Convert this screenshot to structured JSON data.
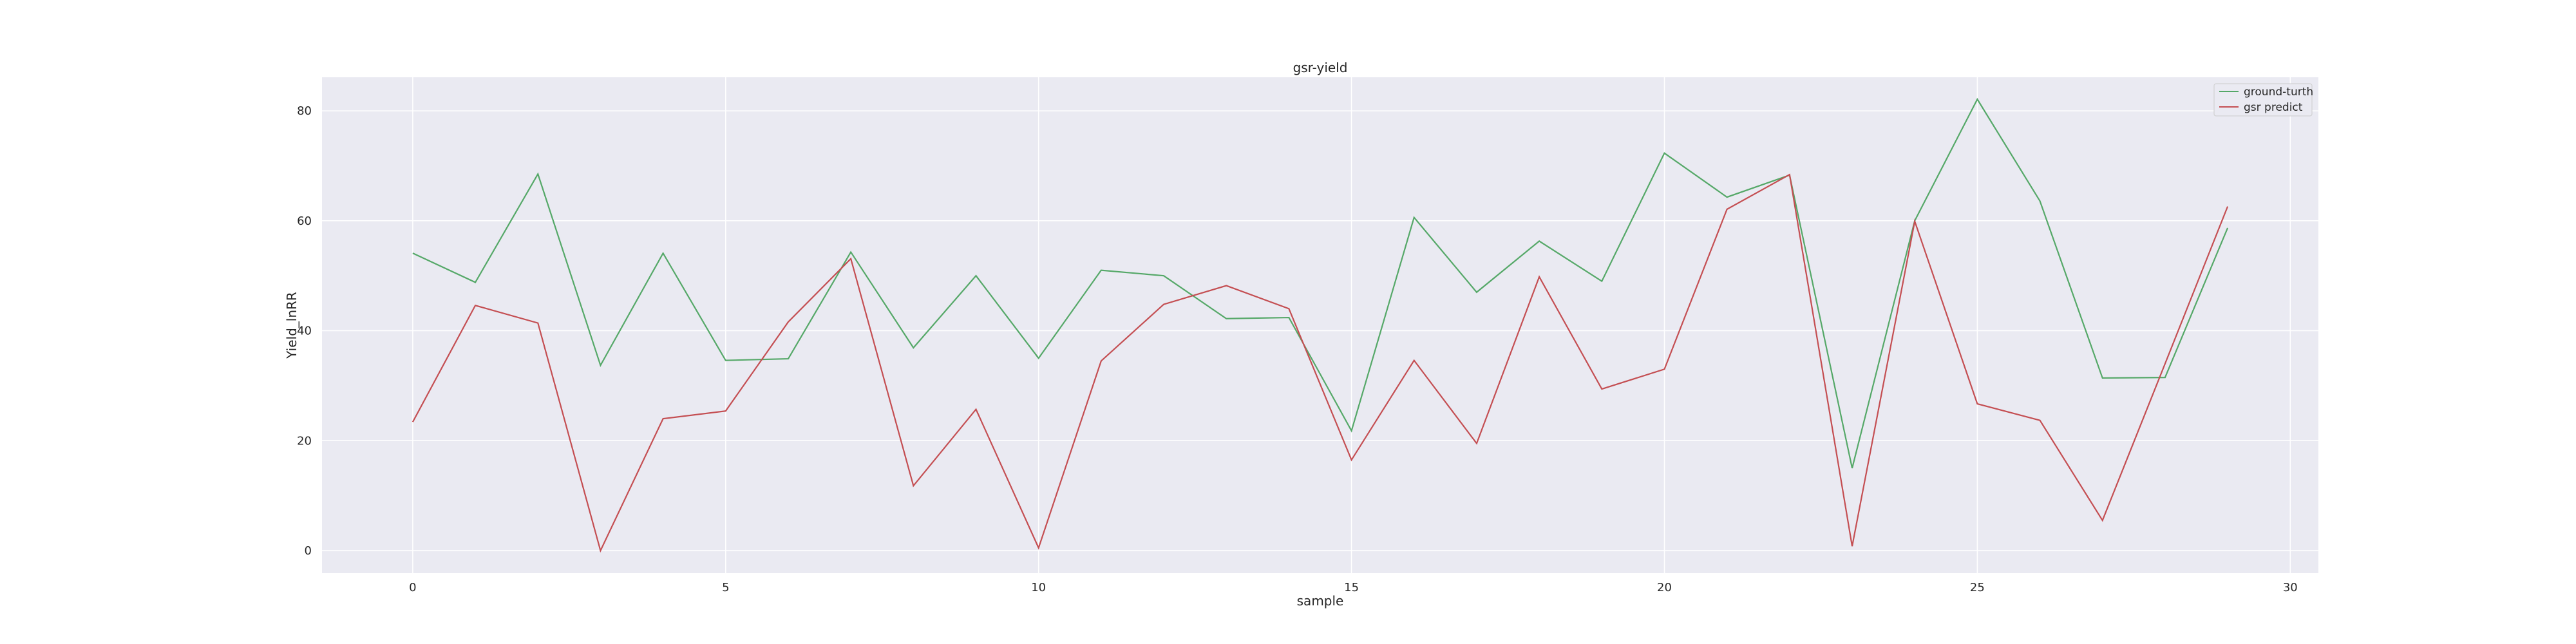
{
  "chart_data": {
    "type": "line",
    "title": "gsr-yield",
    "xlabel": "sample",
    "ylabel": "Yield_lnRR",
    "xlim": [
      -1.45,
      30.45
    ],
    "ylim": [
      -4.1,
      86.1
    ],
    "xticks": [
      0,
      5,
      10,
      15,
      20,
      25,
      30
    ],
    "yticks": [
      0,
      20,
      40,
      60,
      80
    ],
    "grid": true,
    "legend_position": "top-right",
    "x": [
      0,
      1,
      2,
      3,
      4,
      5,
      6,
      7,
      8,
      9,
      10,
      11,
      12,
      13,
      14,
      15,
      16,
      17,
      18,
      19,
      20,
      21,
      22,
      23,
      24,
      25,
      26,
      27,
      28,
      29
    ],
    "series": [
      {
        "name": "ground-turth",
        "color": "#55a868",
        "values": [
          54.1,
          48.8,
          68.5,
          33.7,
          54.1,
          34.6,
          34.9,
          54.3,
          36.9,
          50.0,
          35.0,
          51.0,
          50.0,
          42.2,
          42.4,
          21.8,
          60.6,
          47.0,
          56.3,
          49.0,
          72.3,
          64.3,
          68.3,
          15.0,
          60.0,
          82.1,
          63.6,
          31.4,
          31.5,
          58.7
        ]
      },
      {
        "name": "gsr predict",
        "color": "#c44e52",
        "values": [
          23.4,
          44.6,
          41.4,
          0.0,
          24.0,
          25.4,
          41.6,
          53.1,
          11.8,
          25.7,
          0.5,
          34.5,
          44.8,
          48.2,
          44.0,
          16.5,
          34.6,
          19.5,
          49.8,
          29.4,
          33.0,
          62.1,
          68.4,
          0.8,
          59.9,
          26.7,
          23.7,
          5.5,
          34.0,
          62.6
        ]
      }
    ]
  }
}
